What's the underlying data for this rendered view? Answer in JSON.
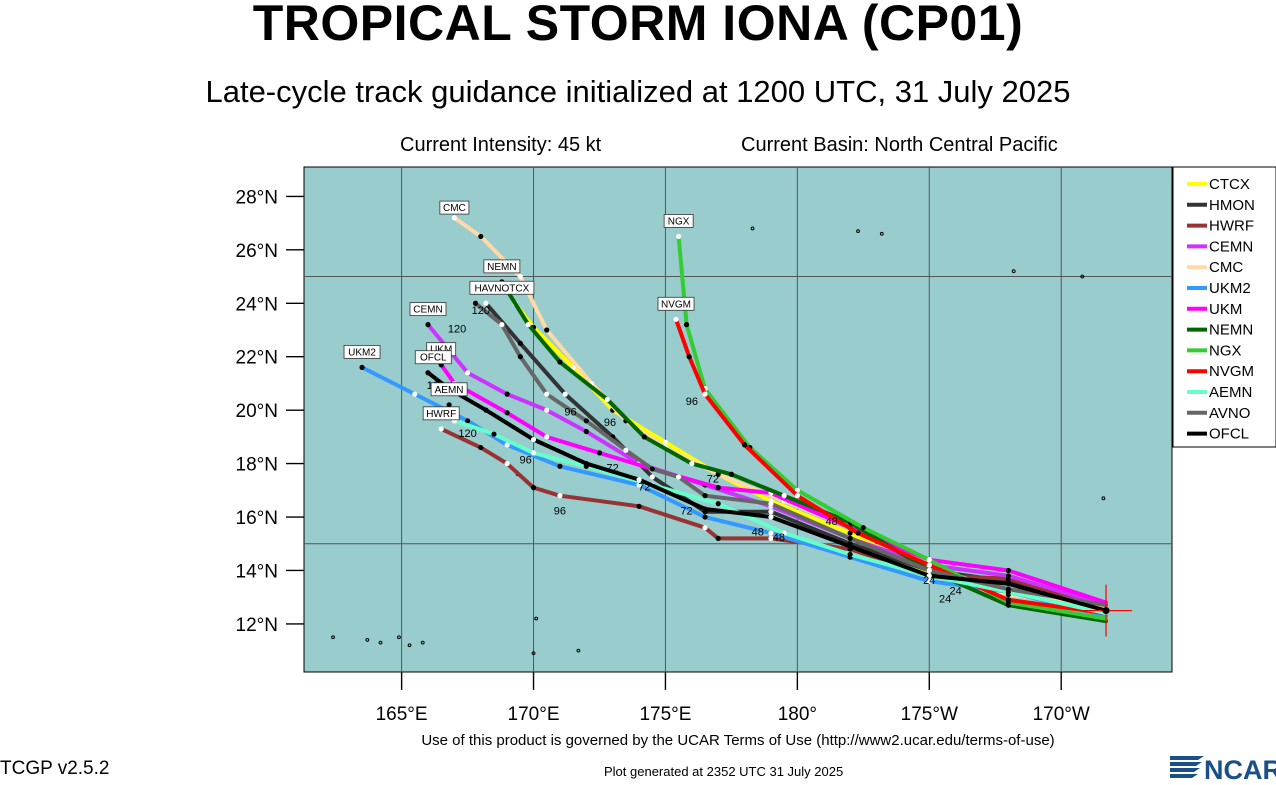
{
  "title": "TROPICAL STORM IONA (CP01)",
  "subtitle": "Late-cycle track guidance initialized at 1200 UTC, 31 July 2025",
  "current_intensity": "Current Intensity: 45 kt",
  "current_basin": "Current Basin: North Central Pacific",
  "terms": "Use of this product is governed by the UCAR Terms of Use (http://www2.ucar.edu/terms-of-use)",
  "version": "TCGP v2.5.2",
  "generated": "Plot generated at 2352 UTC   31 July 2025",
  "logo_text": "NCAR",
  "colors": {
    "ocean": "#99cccc",
    "grid": "#555555",
    "background": "#ffffff"
  },
  "chart_data": {
    "type": "map-tracks",
    "lat_ticks": [
      "12°N",
      "14°N",
      "16°N",
      "18°N",
      "20°N",
      "22°N",
      "24°N",
      "26°N",
      "28°N"
    ],
    "lon_ticks": [
      "165°E",
      "170°E",
      "175°E",
      "180°",
      "175°W",
      "170°W"
    ],
    "lat_values": [
      12,
      14,
      16,
      18,
      20,
      22,
      24,
      26,
      28
    ],
    "lon_values": [
      165,
      170,
      175,
      180,
      185,
      190
    ],
    "lon_range": [
      161.3,
      194.2
    ],
    "lat_range": [
      10.2,
      29.1
    ],
    "grid": true,
    "legend_position": "top-right",
    "storm_position": {
      "lon": 191.7,
      "lat": 12.5
    },
    "forecast_hour_labels": [
      "24",
      "48",
      "72",
      "96",
      "120"
    ],
    "series": [
      {
        "name": "CTCX",
        "color": "#ffff00",
        "points": [
          [
            191.7,
            12.6
          ],
          [
            188,
            13.1
          ],
          [
            185,
            13.9
          ],
          [
            182,
            15.4
          ],
          [
            179,
            16.6
          ],
          [
            177,
            17.6
          ],
          [
            175,
            18.8
          ],
          [
            173,
            20.0
          ],
          [
            171.5,
            21.6
          ],
          [
            170,
            23.1
          ],
          [
            169.3,
            24.0
          ]
        ]
      },
      {
        "name": "HMON",
        "color": "#333333",
        "points": [
          [
            191.7,
            12.5
          ],
          [
            188,
            13.6
          ],
          [
            185,
            14.0
          ],
          [
            182,
            15.0
          ],
          [
            179,
            16.2
          ],
          [
            176.5,
            16.2
          ],
          [
            174.5,
            17.5
          ],
          [
            173,
            19.0
          ],
          [
            171.2,
            20.6
          ],
          [
            169.5,
            22.5
          ],
          [
            168.2,
            24.0
          ]
        ]
      },
      {
        "name": "HWRF",
        "color": "#993333",
        "points": [
          [
            191.7,
            12.6
          ],
          [
            188,
            13.7
          ],
          [
            185,
            13.8
          ],
          [
            182,
            14.8
          ],
          [
            179,
            15.2
          ],
          [
            177,
            15.2
          ],
          [
            176.5,
            15.6
          ],
          [
            174,
            16.4
          ],
          [
            171,
            16.8
          ],
          [
            170,
            17.1
          ],
          [
            169,
            18.0
          ],
          [
            168,
            18.6
          ],
          [
            166.5,
            19.3
          ]
        ]
      },
      {
        "name": "CEMN",
        "color": "#cc33ff",
        "points": [
          [
            191.7,
            12.7
          ],
          [
            188,
            13.8
          ],
          [
            185,
            14.2
          ],
          [
            182,
            15.2
          ],
          [
            179,
            16.4
          ],
          [
            176.5,
            17.2
          ],
          [
            174,
            18.0
          ],
          [
            172,
            19.2
          ],
          [
            170.5,
            20.0
          ],
          [
            169,
            20.6
          ],
          [
            167.5,
            21.4
          ],
          [
            166,
            23.2
          ]
        ]
      },
      {
        "name": "CMC",
        "color": "#ffd9a8",
        "points": [
          [
            191.7,
            12.6
          ],
          [
            188,
            13.1
          ],
          [
            185,
            14.2
          ],
          [
            182,
            15.6
          ],
          [
            179.5,
            16.6
          ],
          [
            177,
            17.6
          ],
          [
            175,
            18.6
          ],
          [
            173.5,
            19.6
          ],
          [
            172.2,
            21.0
          ],
          [
            170.5,
            23.0
          ],
          [
            169.5,
            25.0
          ],
          [
            168,
            26.5
          ],
          [
            167,
            27.2
          ]
        ]
      },
      {
        "name": "UKM2",
        "color": "#3399ff",
        "points": [
          [
            191.7,
            12.3
          ],
          [
            188,
            13.2
          ],
          [
            185,
            13.6
          ],
          [
            182,
            14.5
          ],
          [
            179,
            15.4
          ],
          [
            176.5,
            16.0
          ],
          [
            174,
            17.2
          ],
          [
            171,
            17.9
          ],
          [
            169,
            18.7
          ],
          [
            167.5,
            19.6
          ],
          [
            165.5,
            20.6
          ],
          [
            163.5,
            21.6
          ]
        ]
      },
      {
        "name": "UKM",
        "color": "#ff00ff",
        "points": [
          [
            191.7,
            12.8
          ],
          [
            188,
            14.0
          ],
          [
            185,
            14.4
          ],
          [
            182,
            15.6
          ],
          [
            179,
            16.9
          ],
          [
            177,
            17.1
          ],
          [
            174.5,
            17.8
          ],
          [
            172.5,
            18.4
          ],
          [
            170.5,
            19.0
          ],
          [
            169,
            19.9
          ],
          [
            167,
            21.0
          ],
          [
            166.5,
            21.7
          ]
        ]
      },
      {
        "name": "NEMN",
        "color": "#006600",
        "points": [
          [
            191.7,
            12.1
          ],
          [
            188,
            12.7
          ],
          [
            185,
            14.0
          ],
          [
            182,
            15.8
          ],
          [
            179.5,
            16.8
          ],
          [
            177.5,
            17.6
          ],
          [
            176,
            18.0
          ],
          [
            174.2,
            19.0
          ],
          [
            172.8,
            20.4
          ],
          [
            171,
            21.8
          ],
          [
            169.8,
            23.2
          ],
          [
            168.8,
            24.8
          ]
        ]
      },
      {
        "name": "NGX",
        "color": "#33cc33",
        "points": [
          [
            191.7,
            12.2
          ],
          [
            188,
            12.8
          ],
          [
            185,
            14.4
          ],
          [
            182.5,
            15.6
          ],
          [
            180,
            17.0
          ],
          [
            178.2,
            18.6
          ],
          [
            176.5,
            20.8
          ],
          [
            175.8,
            23.2
          ],
          [
            175.5,
            26.5
          ]
        ]
      },
      {
        "name": "NVGM",
        "color": "#ff0000",
        "points": [
          [
            191.7,
            12.4
          ],
          [
            188,
            12.9
          ],
          [
            185,
            14.2
          ],
          [
            182.3,
            15.4
          ],
          [
            180,
            16.8
          ],
          [
            178,
            18.7
          ],
          [
            176.5,
            20.6
          ],
          [
            175.9,
            22.0
          ],
          [
            175.4,
            23.4
          ]
        ]
      },
      {
        "name": "AEMN",
        "color": "#66ffcc",
        "points": [
          [
            191.7,
            12.4
          ],
          [
            188,
            13.2
          ],
          [
            185,
            13.8
          ],
          [
            182,
            14.6
          ],
          [
            179.5,
            15.4
          ],
          [
            177,
            16.5
          ],
          [
            174.5,
            17.2
          ],
          [
            172,
            17.9
          ],
          [
            170,
            18.4
          ],
          [
            168.5,
            19.1
          ],
          [
            167,
            19.6
          ],
          [
            166.8,
            20.2
          ]
        ]
      },
      {
        "name": "AVNO",
        "color": "#666666",
        "points": [
          [
            191.7,
            12.7
          ],
          [
            188,
            13.3
          ],
          [
            185,
            14.0
          ],
          [
            182,
            15.2
          ],
          [
            179,
            16.5
          ],
          [
            176.5,
            16.8
          ],
          [
            175.5,
            17.5
          ],
          [
            174.5,
            17.8
          ],
          [
            173.5,
            18.5
          ],
          [
            172,
            19.6
          ],
          [
            170.5,
            20.6
          ],
          [
            169.5,
            22.0
          ],
          [
            168.8,
            23.2
          ],
          [
            167.8,
            24.0
          ]
        ]
      },
      {
        "name": "OFCL",
        "color": "#000000",
        "points": [
          [
            191.7,
            12.5
          ],
          [
            188,
            13.5
          ],
          [
            185,
            13.8
          ],
          [
            182,
            14.9
          ],
          [
            179,
            16.0
          ],
          [
            176.5,
            16.3
          ],
          [
            174,
            17.4
          ],
          [
            172,
            18.0
          ],
          [
            170,
            18.9
          ],
          [
            168.2,
            20.0
          ],
          [
            166.8,
            20.8
          ],
          [
            166,
            21.4
          ]
        ]
      }
    ],
    "end_labels": [
      {
        "text": "CMC",
        "lon": 167.0,
        "lat": 27.3
      },
      {
        "text": "NGX",
        "lon": 175.5,
        "lat": 26.8
      },
      {
        "text": "NEMN",
        "lon": 168.8,
        "lat": 25.1
      },
      {
        "text": "HAVNOTCX",
        "lon": 168.8,
        "lat": 24.3
      },
      {
        "text": "NVGM",
        "lon": 175.4,
        "lat": 23.7
      },
      {
        "text": "CEMN",
        "lon": 166.0,
        "lat": 23.5
      },
      {
        "text": "UKM",
        "lon": 166.5,
        "lat": 22.0
      },
      {
        "text": "UKM2",
        "lon": 163.5,
        "lat": 21.9
      },
      {
        "text": "OFCL",
        "lon": 166.2,
        "lat": 21.7
      },
      {
        "text": "AEMN",
        "lon": 166.8,
        "lat": 20.5
      },
      {
        "text": "HWRF",
        "lon": 166.5,
        "lat": 19.6
      }
    ]
  }
}
